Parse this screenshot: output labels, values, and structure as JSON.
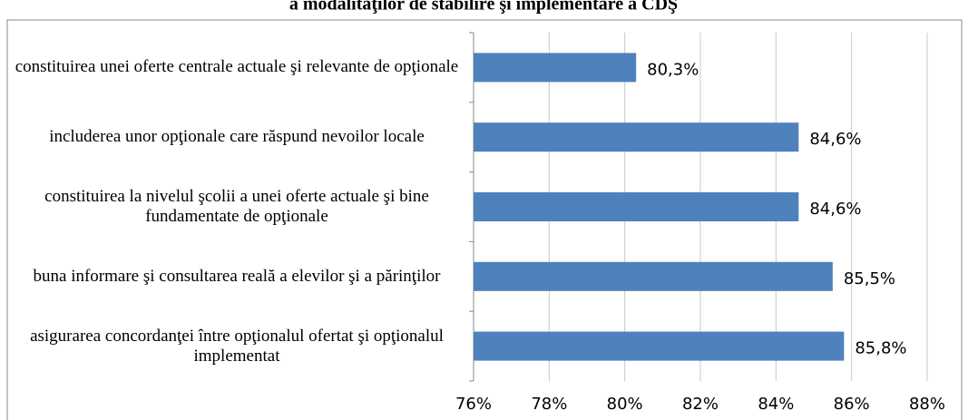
{
  "chart_data": {
    "type": "bar",
    "orientation": "horizontal",
    "title": "a modalităţilor de stabilire şi implementare a CDŞ",
    "categories": [
      "constituirea unei oferte centrale actuale şi relevante de opţionale",
      "includerea unor opţionale care răspund nevoilor locale",
      "constituirea la nivelul şcolii a unei oferte actuale şi bine fundamentate de opţionale",
      "buna informare şi consultarea reală a elevilor şi a părinţilor",
      "asigurarea concordanţei între opţionalul ofertat şi opţionalul implementat"
    ],
    "values": [
      80.3,
      84.6,
      84.6,
      85.5,
      85.8
    ],
    "value_labels": [
      "80,3%",
      "84,6%",
      "84,6%",
      "85,5%",
      "85,8%"
    ],
    "color": "#4f81bd",
    "xlim": [
      76,
      88
    ],
    "xticks": [
      {
        "value": 76,
        "label": "76%"
      },
      {
        "value": 78,
        "label": "78%"
      },
      {
        "value": 80,
        "label": "80%"
      },
      {
        "value": 82,
        "label": "82%"
      },
      {
        "value": 84,
        "label": "84%"
      },
      {
        "value": 86,
        "label": "86%"
      },
      {
        "value": 88,
        "label": "88%"
      }
    ],
    "grid": true
  }
}
